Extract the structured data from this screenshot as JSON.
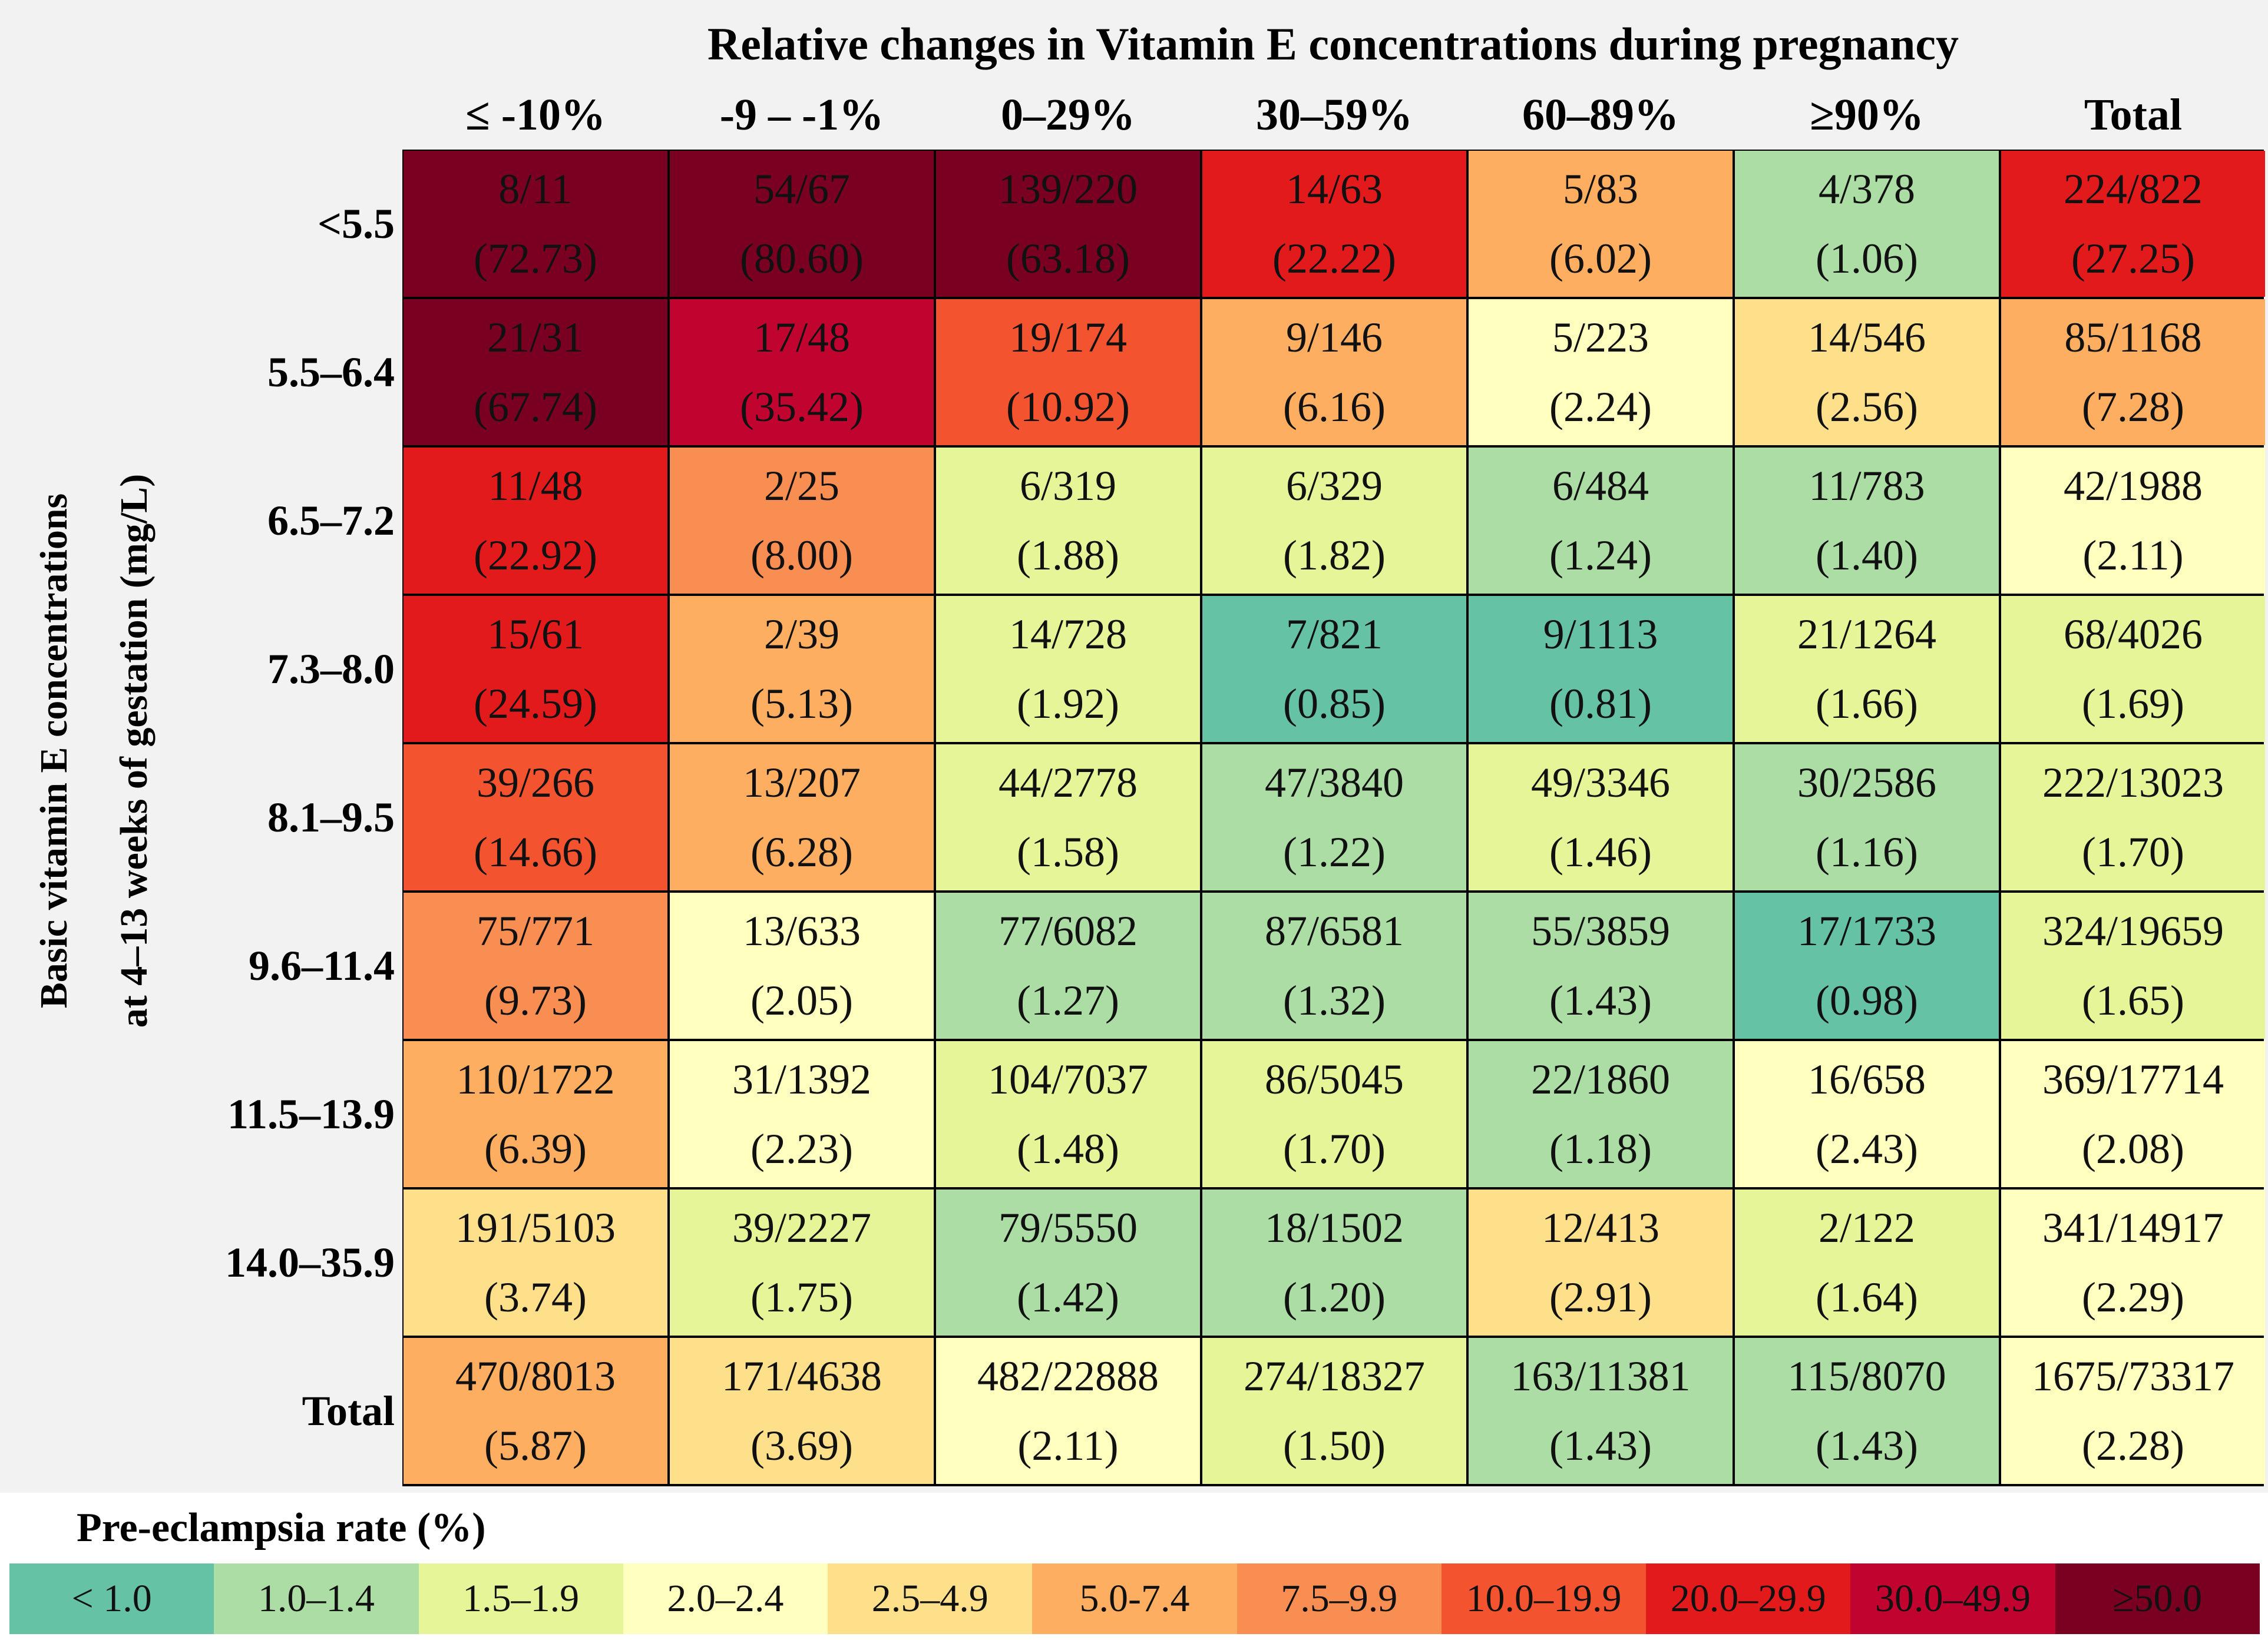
{
  "chart_data": {
    "type": "heatmap",
    "title": "Relative changes in Vitamin E concentrations during pregnancy",
    "ylabel": [
      "Basic vitamin E concentrations",
      "at 4–13 weeks of gestation (mg/L)"
    ],
    "columns": [
      "≤ -10%",
      "-9 – -1%",
      "0–29%",
      "30–59%",
      "60–89%",
      "≥90%",
      "Total"
    ],
    "rows": [
      "<5.5",
      "5.5–6.4",
      "6.5–7.2",
      "7.3–8.0",
      "8.1–9.5",
      "9.6–11.4",
      "11.5–13.9",
      "14.0–35.9",
      "Total"
    ],
    "cells": [
      [
        {
          "count": "8/11",
          "rate": "(72.73)"
        },
        {
          "count": "54/67",
          "rate": "(80.60)"
        },
        {
          "count": "139/220",
          "rate": "(63.18)"
        },
        {
          "count": "14/63",
          "rate": "(22.22)"
        },
        {
          "count": "5/83",
          "rate": "(6.02)"
        },
        {
          "count": "4/378",
          "rate": "(1.06)"
        },
        {
          "count": "224/822",
          "rate": "(27.25)"
        }
      ],
      [
        {
          "count": "21/31",
          "rate": "(67.74)"
        },
        {
          "count": "17/48",
          "rate": "(35.42)"
        },
        {
          "count": "19/174",
          "rate": "(10.92)"
        },
        {
          "count": "9/146",
          "rate": "(6.16)"
        },
        {
          "count": "5/223",
          "rate": "(2.24)"
        },
        {
          "count": "14/546",
          "rate": "(2.56)"
        },
        {
          "count": "85/1168",
          "rate": "(7.28)"
        }
      ],
      [
        {
          "count": "11/48",
          "rate": "(22.92)"
        },
        {
          "count": "2/25",
          "rate": "(8.00)"
        },
        {
          "count": "6/319",
          "rate": "(1.88)"
        },
        {
          "count": "6/329",
          "rate": "(1.82)"
        },
        {
          "count": "6/484",
          "rate": "(1.24)"
        },
        {
          "count": "11/783",
          "rate": "(1.40)"
        },
        {
          "count": "42/1988",
          "rate": "(2.11)"
        }
      ],
      [
        {
          "count": "15/61",
          "rate": "(24.59)"
        },
        {
          "count": "2/39",
          "rate": "(5.13)"
        },
        {
          "count": "14/728",
          "rate": "(1.92)"
        },
        {
          "count": "7/821",
          "rate": "(0.85)"
        },
        {
          "count": "9/1113",
          "rate": "(0.81)"
        },
        {
          "count": "21/1264",
          "rate": "(1.66)"
        },
        {
          "count": "68/4026",
          "rate": "(1.69)"
        }
      ],
      [
        {
          "count": "39/266",
          "rate": "(14.66)"
        },
        {
          "count": "13/207",
          "rate": "(6.28)"
        },
        {
          "count": "44/2778",
          "rate": "(1.58)"
        },
        {
          "count": "47/3840",
          "rate": "(1.22)"
        },
        {
          "count": "49/3346",
          "rate": "(1.46)"
        },
        {
          "count": "30/2586",
          "rate": "(1.16)"
        },
        {
          "count": "222/13023",
          "rate": "(1.70)"
        }
      ],
      [
        {
          "count": "75/771",
          "rate": "(9.73)"
        },
        {
          "count": "13/633",
          "rate": "(2.05)"
        },
        {
          "count": "77/6082",
          "rate": "(1.27)"
        },
        {
          "count": "87/6581",
          "rate": "(1.32)"
        },
        {
          "count": "55/3859",
          "rate": "(1.43)"
        },
        {
          "count": "17/1733",
          "rate": "(0.98)"
        },
        {
          "count": "324/19659",
          "rate": "(1.65)"
        }
      ],
      [
        {
          "count": "110/1722",
          "rate": "(6.39)"
        },
        {
          "count": "31/1392",
          "rate": "(2.23)"
        },
        {
          "count": "104/7037",
          "rate": "(1.48)"
        },
        {
          "count": "86/5045",
          "rate": "(1.70)"
        },
        {
          "count": "22/1860",
          "rate": "(1.18)"
        },
        {
          "count": "16/658",
          "rate": "(2.43)"
        },
        {
          "count": "369/17714",
          "rate": "(2.08)"
        }
      ],
      [
        {
          "count": "191/5103",
          "rate": "(3.74)"
        },
        {
          "count": "39/2227",
          "rate": "(1.75)"
        },
        {
          "count": "79/5550",
          "rate": "(1.42)"
        },
        {
          "count": "18/1502",
          "rate": "(1.20)"
        },
        {
          "count": "12/413",
          "rate": "(2.91)"
        },
        {
          "count": "2/122",
          "rate": "(1.64)"
        },
        {
          "count": "341/14917",
          "rate": "(2.29)"
        }
      ],
      [
        {
          "count": "470/8013",
          "rate": "(5.87)"
        },
        {
          "count": "171/4638",
          "rate": "(3.69)"
        },
        {
          "count": "482/22888",
          "rate": "(2.11)"
        },
        {
          "count": "274/18327",
          "rate": "(1.50)"
        },
        {
          "count": "163/11381",
          "rate": "(1.43)"
        },
        {
          "count": "115/8070",
          "rate": "(1.43)"
        },
        {
          "count": "1675/73317",
          "rate": "(2.28)"
        }
      ]
    ],
    "legend_title": "Pre-eclampsia rate (%)",
    "legend": [
      {
        "label": "< 1.0",
        "min": 0,
        "max": 0.995,
        "color": "#66c2a5"
      },
      {
        "label": "1.0–1.4",
        "min": 0.995,
        "max": 1.45,
        "color": "#abdda4"
      },
      {
        "label": "1.5–1.9",
        "min": 1.45,
        "max": 1.95,
        "color": "#e6f598"
      },
      {
        "label": "2.0–2.4",
        "min": 1.95,
        "max": 2.45,
        "color": "#ffffbf"
      },
      {
        "label": "2.5–4.9",
        "min": 2.45,
        "max": 4.95,
        "color": "#fee08b"
      },
      {
        "label": "5.0-7.4",
        "min": 4.95,
        "max": 7.45,
        "color": "#fdae61"
      },
      {
        "label": "7.5–9.9",
        "min": 7.45,
        "max": 9.95,
        "color": "#f98e52"
      },
      {
        "label": "10.0–19.9",
        "min": 9.95,
        "max": 19.95,
        "color": "#f4532f"
      },
      {
        "label": "20.0–29.9",
        "min": 19.95,
        "max": 29.95,
        "color": "#e31a1c"
      },
      {
        "label": "30.0–49.9",
        "min": 29.95,
        "max": 49.95,
        "color": "#c1042f"
      },
      {
        "label": "≥50.0",
        "min": 49.95,
        "max": 1000,
        "color": "#7a0022"
      }
    ]
  }
}
